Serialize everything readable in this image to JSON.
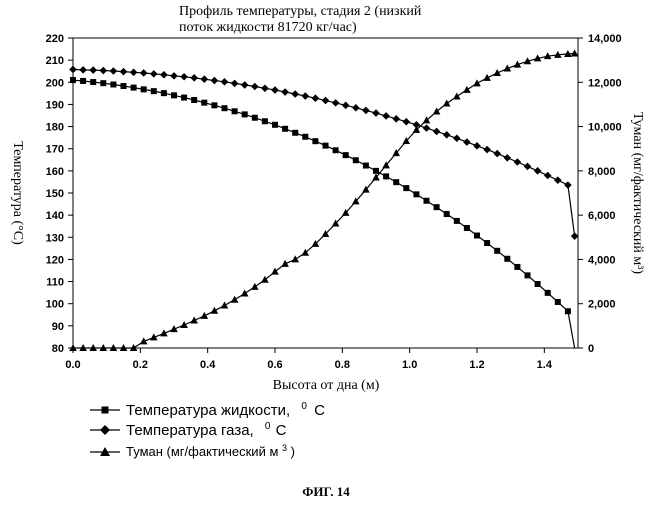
{
  "figure_caption": "ФИГ. 14",
  "chart_data": {
    "type": "line",
    "title_line1": "Профиль температуры, стадия 2 (низкий",
    "title_line2": "поток жидкости 81720 кг/час)",
    "xlabel": "Высота от дна (м)",
    "ylabel_left": "Температура (°С)",
    "ylabel_right": "Туман (мг/фактический м³)",
    "xlim": [
      0.0,
      1.5
    ],
    "ylim_left": [
      80,
      220
    ],
    "ylim_right": [
      0,
      14000
    ],
    "x_ticks": [
      "0.0",
      "0.2",
      "0.4",
      "0.6",
      "0.8",
      "1.0",
      "1.2",
      "1.4"
    ],
    "y_left_ticks": [
      "80",
      "90",
      "100",
      "110",
      "120",
      "130",
      "140",
      "150",
      "160",
      "170",
      "180",
      "190",
      "200",
      "210",
      "220"
    ],
    "y_right_ticks": [
      "0",
      "2,000",
      "4,000",
      "6,000",
      "8,000",
      "10,000",
      "12,000",
      "14,000"
    ],
    "grid": false,
    "legend_position": "bottom-left",
    "legend": [
      {
        "label": "Температура жидкости,",
        "sup": "0",
        "unit": "C",
        "marker": "square"
      },
      {
        "label": "Температура газа,",
        "sup": "0",
        "unit": "C",
        "marker": "diamond"
      },
      {
        "label": "Туман (мг/фактический м",
        "sup": "3",
        "unit": ")",
        "marker": "triangle"
      }
    ],
    "x": [
      0.0,
      0.03,
      0.06,
      0.09,
      0.12,
      0.15,
      0.18,
      0.21,
      0.24,
      0.27,
      0.3,
      0.33,
      0.36,
      0.39,
      0.42,
      0.45,
      0.48,
      0.51,
      0.54,
      0.57,
      0.6,
      0.63,
      0.66,
      0.69,
      0.72,
      0.75,
      0.78,
      0.81,
      0.84,
      0.87,
      0.9,
      0.93,
      0.96,
      0.99,
      1.02,
      1.05,
      1.08,
      1.11,
      1.14,
      1.17,
      1.2,
      1.23,
      1.26,
      1.29,
      1.32,
      1.35,
      1.38,
      1.41,
      1.44,
      1.47,
      1.49
    ],
    "series": [
      {
        "axis": "left",
        "marker": "square",
        "values": [
          201.0,
          200.6,
          200.1,
          199.6,
          199.0,
          198.3,
          197.6,
          196.8,
          196.0,
          195.1,
          194.1,
          193.1,
          192.0,
          190.8,
          189.6,
          188.3,
          186.9,
          185.5,
          184.0,
          182.4,
          180.8,
          179.0,
          177.2,
          175.4,
          173.4,
          171.4,
          169.3,
          167.1,
          164.8,
          162.4,
          160.0,
          157.5,
          154.9,
          152.2,
          149.4,
          146.5,
          143.6,
          140.5,
          137.4,
          134.2,
          130.8,
          127.4,
          123.9,
          120.3,
          116.6,
          112.8,
          108.9,
          104.9,
          100.8,
          96.6,
          80.0
        ]
      },
      {
        "axis": "left",
        "marker": "diamond",
        "values": [
          205.8,
          205.6,
          205.5,
          205.3,
          205.1,
          204.8,
          204.5,
          204.2,
          203.8,
          203.4,
          202.9,
          202.5,
          202.0,
          201.4,
          200.8,
          200.2,
          199.5,
          198.8,
          198.1,
          197.3,
          196.5,
          195.6,
          194.7,
          193.8,
          192.8,
          191.8,
          190.7,
          189.6,
          188.5,
          187.3,
          186.1,
          184.8,
          183.5,
          182.2,
          180.8,
          179.3,
          177.8,
          176.3,
          174.7,
          173.0,
          171.3,
          169.6,
          167.8,
          165.9,
          164.0,
          162.0,
          160.0,
          157.9,
          155.8,
          153.6,
          130.5
        ]
      },
      {
        "axis": "right",
        "marker": "triangle",
        "values": [
          0,
          0,
          0,
          0,
          0,
          0,
          0,
          300,
          480,
          660,
          850,
          1040,
          1240,
          1450,
          1680,
          1920,
          2180,
          2460,
          2760,
          3080,
          3450,
          3800,
          4000,
          4300,
          4700,
          5150,
          5620,
          6100,
          6620,
          7150,
          7700,
          8250,
          8800,
          9350,
          9850,
          10280,
          10680,
          11040,
          11360,
          11660,
          11950,
          12200,
          12420,
          12620,
          12800,
          12950,
          13080,
          13180,
          13240,
          13280,
          13300
        ]
      }
    ]
  }
}
